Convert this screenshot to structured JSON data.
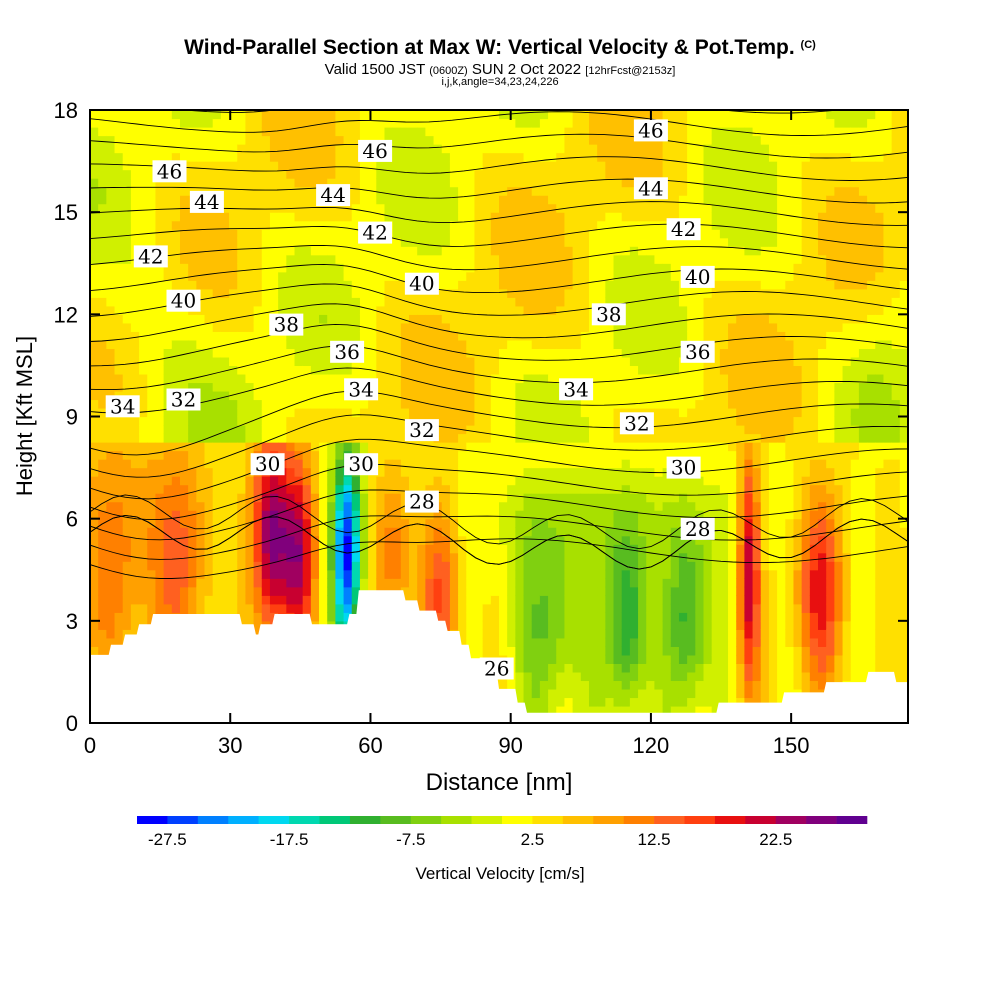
{
  "header": {
    "title": "Wind-Parallel Section at Max W: Vertical Velocity & Pot.Temp.",
    "copyright": "(C)",
    "subtitle_a": "Valid 1500 JST",
    "subtitle_b": "(0600Z)",
    "subtitle_c": "SUN 2 Oct 2022",
    "subtitle_d": "[12hrFcst@2153z]",
    "note": "i,j,k,angle=34,23,24,226"
  },
  "chart_data": {
    "type": "heatmap",
    "title": "Wind-Parallel Section at Max W: Vertical Velocity & Pot.Temp.",
    "xlabel": "Distance [nm]",
    "ylabel": "Height [Kft MSL]",
    "xlim": [
      0,
      175
    ],
    "ylim": [
      0,
      18
    ],
    "x_ticks": [
      "0",
      "30",
      "60",
      "90",
      "120",
      "150"
    ],
    "x_tick_values": [
      0,
      30,
      60,
      90,
      120,
      150
    ],
    "y_ticks": [
      "0",
      "3",
      "6",
      "9",
      "12",
      "15",
      "18"
    ],
    "y_tick_values": [
      0,
      3,
      6,
      9,
      12,
      15,
      18
    ],
    "colorbar": {
      "label": "Vertical Velocity [cm/s]",
      "min": -30,
      "max": 30,
      "step": 2.5,
      "tick_labels": [
        "-27.5",
        "-17.5",
        "-7.5",
        "2.5",
        "12.5",
        "22.5"
      ],
      "tick_values": [
        -27.5,
        -17.5,
        -7.5,
        2.5,
        12.5,
        22.5
      ],
      "colors": [
        "#0000ff",
        "#0040ff",
        "#0080ff",
        "#00b0ff",
        "#00d8f0",
        "#00d8b0",
        "#00c878",
        "#30b030",
        "#58bc20",
        "#80d010",
        "#a8e000",
        "#d0f000",
        "#ffff00",
        "#ffe000",
        "#ffc000",
        "#ffa000",
        "#ff8000",
        "#ff6020",
        "#ff4010",
        "#e81010",
        "#c80030",
        "#a00060",
        "#80007c",
        "#600090"
      ]
    },
    "contour_field": "Potential Temperature",
    "contour_labels": [
      {
        "text": "46",
        "x": 17,
        "y": 16.2
      },
      {
        "text": "46",
        "x": 61,
        "y": 16.8
      },
      {
        "text": "46",
        "x": 120,
        "y": 17.4
      },
      {
        "text": "44",
        "x": 25,
        "y": 15.3
      },
      {
        "text": "44",
        "x": 52,
        "y": 15.5
      },
      {
        "text": "44",
        "x": 120,
        "y": 15.7
      },
      {
        "text": "42",
        "x": 13,
        "y": 13.7
      },
      {
        "text": "42",
        "x": 61,
        "y": 14.4
      },
      {
        "text": "42",
        "x": 127,
        "y": 14.5
      },
      {
        "text": "40",
        "x": 20,
        "y": 12.4
      },
      {
        "text": "40",
        "x": 71,
        "y": 12.9
      },
      {
        "text": "40",
        "x": 130,
        "y": 13.1
      },
      {
        "text": "38",
        "x": 42,
        "y": 11.7
      },
      {
        "text": "38",
        "x": 111,
        "y": 12.0
      },
      {
        "text": "36",
        "x": 55,
        "y": 10.9
      },
      {
        "text": "36",
        "x": 130,
        "y": 10.9
      },
      {
        "text": "34",
        "x": 7,
        "y": 9.3
      },
      {
        "text": "34",
        "x": 58,
        "y": 9.8
      },
      {
        "text": "34",
        "x": 104,
        "y": 9.8
      },
      {
        "text": "32",
        "x": 20,
        "y": 9.5
      },
      {
        "text": "32",
        "x": 71,
        "y": 8.6
      },
      {
        "text": "32",
        "x": 117,
        "y": 8.8
      },
      {
        "text": "30",
        "x": 38,
        "y": 7.6
      },
      {
        "text": "30",
        "x": 58,
        "y": 7.6
      },
      {
        "text": "30",
        "x": 127,
        "y": 7.5
      },
      {
        "text": "28",
        "x": 71,
        "y": 6.5
      },
      {
        "text": "28",
        "x": 130,
        "y": 5.7
      },
      {
        "text": "26",
        "x": 87,
        "y": 1.6
      }
    ]
  }
}
